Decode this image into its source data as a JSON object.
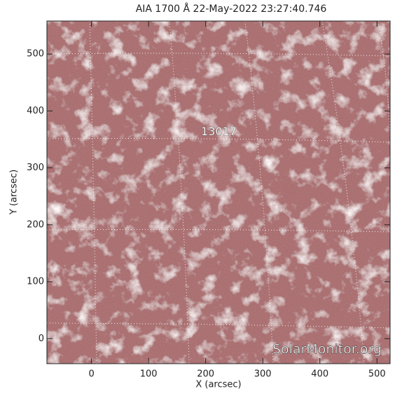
{
  "chart_data": {
    "type": "image",
    "title": "AIA 1700 Å 22-May-2022 23:27:40.746",
    "xlabel": "X (arcsec)",
    "ylabel": "Y (arcsec)",
    "xlim": [
      -78,
      523
    ],
    "ylim": [
      -44,
      558
    ],
    "xticks": [
      0,
      100,
      200,
      300,
      400,
      500
    ],
    "yticks": [
      0,
      100,
      200,
      300,
      400,
      500
    ],
    "annotations": [
      {
        "text": "13017",
        "x": 223,
        "y": 363
      }
    ],
    "watermark": "SolarMonitor.org"
  }
}
